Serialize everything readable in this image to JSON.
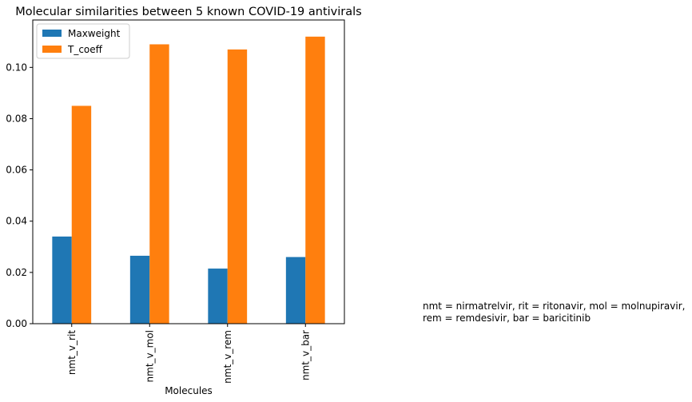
{
  "chart_data": {
    "type": "bar",
    "title": "Molecular similarities between 5 known COVID-19 antivirals",
    "xlabel": "Molecules",
    "ylabel": "",
    "categories": [
      "nmt_v_rit",
      "nmt_v_mol",
      "nmt_v_rem",
      "nmt_v_bar"
    ],
    "series": [
      {
        "name": "Maxweight",
        "color": "#1f77b4",
        "values": [
          0.034,
          0.0265,
          0.0215,
          0.026
        ]
      },
      {
        "name": "T_coeff",
        "color": "#ff7f0e",
        "values": [
          0.085,
          0.109,
          0.107,
          0.112
        ]
      }
    ],
    "ylim": [
      0,
      0.1185
    ],
    "yticks": [
      0.0,
      0.02,
      0.04,
      0.06,
      0.08,
      0.1
    ],
    "ytick_labels": [
      "0.00",
      "0.02",
      "0.04",
      "0.06",
      "0.08",
      "0.10"
    ],
    "legend_position": "top-left",
    "grid": false
  },
  "annotation": {
    "line1": "nmt = nirmatrelvir, rit = ritonavir, mol = molnupiravir,",
    "line2": "rem = remdesivir, bar = baricitinib"
  }
}
